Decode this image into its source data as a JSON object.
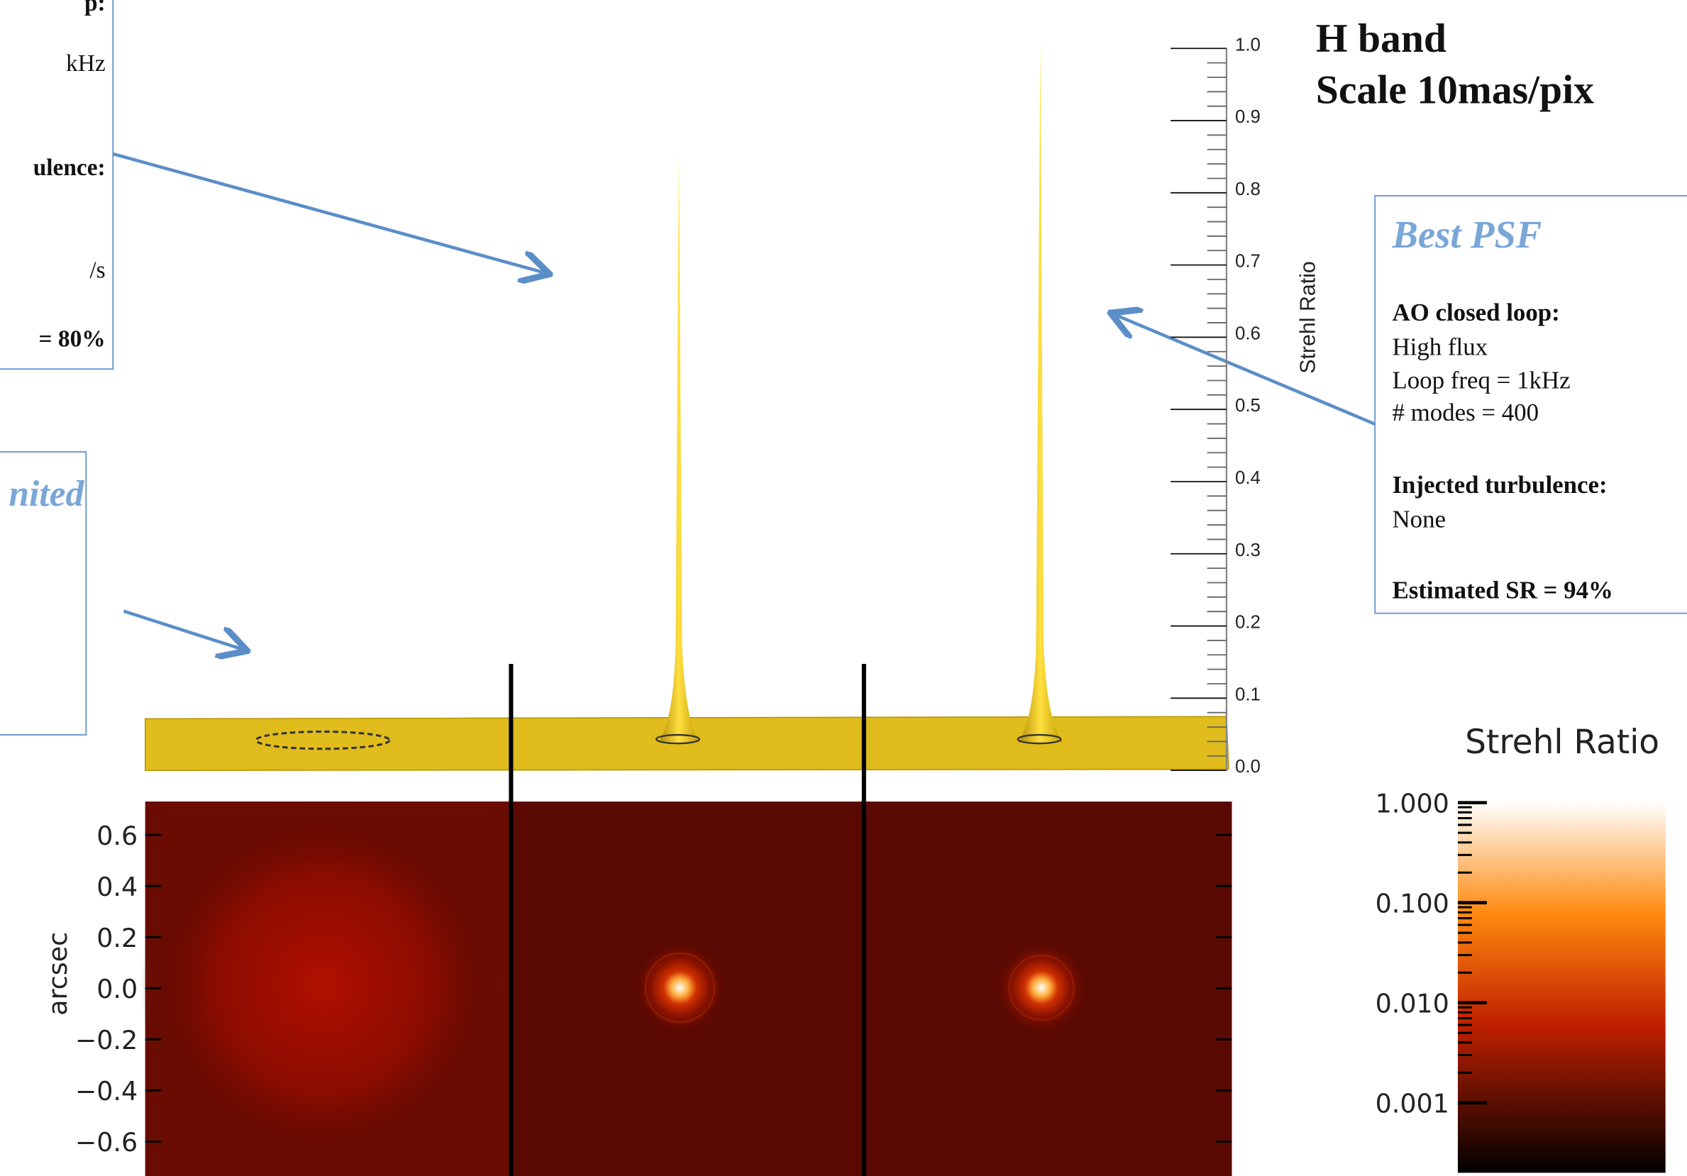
{
  "left_box": {
    "lines": [
      "p:",
      "kHz",
      "ulence:",
      "/s",
      "= 80%"
    ]
  },
  "seeing_box": {
    "title": "nited"
  },
  "header": {
    "band": "H band",
    "scale": "Scale 10mas/pix"
  },
  "best_psf": {
    "title": "Best PSF",
    "lines": [
      "AO closed loop:",
      "High flux",
      "Loop freq = 1kHz",
      "# modes = 400",
      "Injected turbulence:",
      "None",
      "Estimated SR = 94%"
    ]
  },
  "surface_plot": {
    "axis_label": "Strehl Ratio",
    "ticks": [
      "1.0",
      "0.9",
      "0.8",
      "0.7",
      "0.6",
      "0.5",
      "0.4",
      "0.3",
      "0.2",
      "0.1",
      "0.0"
    ]
  },
  "image_panel": {
    "axis_label": "arcsec",
    "ticks": [
      "0.6",
      "0.4",
      "0.2",
      "0.0",
      "−0.2",
      "−0.4",
      "−0.6"
    ]
  },
  "colorbar": {
    "title": "Strehl Ratio",
    "ticks": [
      "1.000",
      "0.100",
      "0.010",
      "0.001"
    ]
  }
}
